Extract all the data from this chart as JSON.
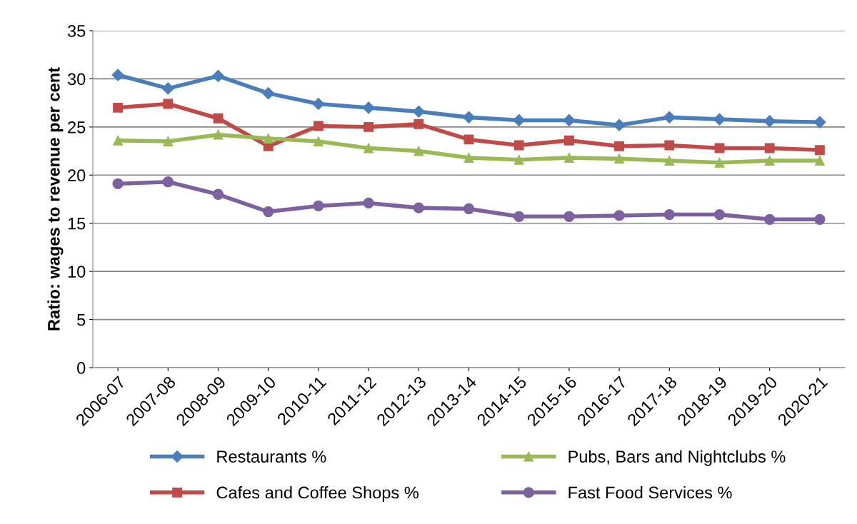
{
  "chart_data": {
    "type": "line",
    "ylabel": "Ratio: wages to revenue per cent",
    "categories": [
      "2006-07",
      "2007-08",
      "2008-09",
      "2009-10",
      "2010-11",
      "2011-12",
      "2012-13",
      "2013-14",
      "2014-15",
      "2015-16",
      "2016-17",
      "2017-18",
      "2018-19",
      "2019-20",
      "2020-21"
    ],
    "series": [
      {
        "name": "Restaurants %",
        "color": "#4a7ebb",
        "marker": "diamond",
        "values": [
          30.4,
          29.0,
          30.3,
          28.5,
          27.4,
          27.0,
          26.6,
          26.0,
          25.7,
          25.7,
          25.2,
          26.0,
          25.8,
          25.6,
          25.5
        ]
      },
      {
        "name": "Cafes and Coffee Shops %",
        "color": "#be4b48",
        "marker": "square",
        "values": [
          27.0,
          27.4,
          25.9,
          23.0,
          25.1,
          25.0,
          25.3,
          23.7,
          23.1,
          23.6,
          23.0,
          23.1,
          22.8,
          22.8,
          22.6
        ]
      },
      {
        "name": "Pubs, Bars and Nightclubs %",
        "color": "#98b954",
        "marker": "triangle",
        "values": [
          23.6,
          23.5,
          24.2,
          23.8,
          23.5,
          22.8,
          22.5,
          21.8,
          21.6,
          21.8,
          21.7,
          21.5,
          21.3,
          21.5,
          21.5
        ]
      },
      {
        "name": "Fast Food Services %",
        "color": "#7d60a0",
        "marker": "circle",
        "values": [
          19.1,
          19.3,
          18.0,
          16.2,
          16.8,
          17.1,
          16.6,
          16.5,
          15.7,
          15.7,
          15.8,
          15.9,
          15.9,
          15.4,
          15.4
        ]
      }
    ],
    "ylim": [
      0,
      35
    ],
    "yticks": [
      0,
      5,
      10,
      15,
      20,
      25,
      30,
      35
    ],
    "grid": "y",
    "legend": "bottom",
    "line_style": "solid"
  }
}
